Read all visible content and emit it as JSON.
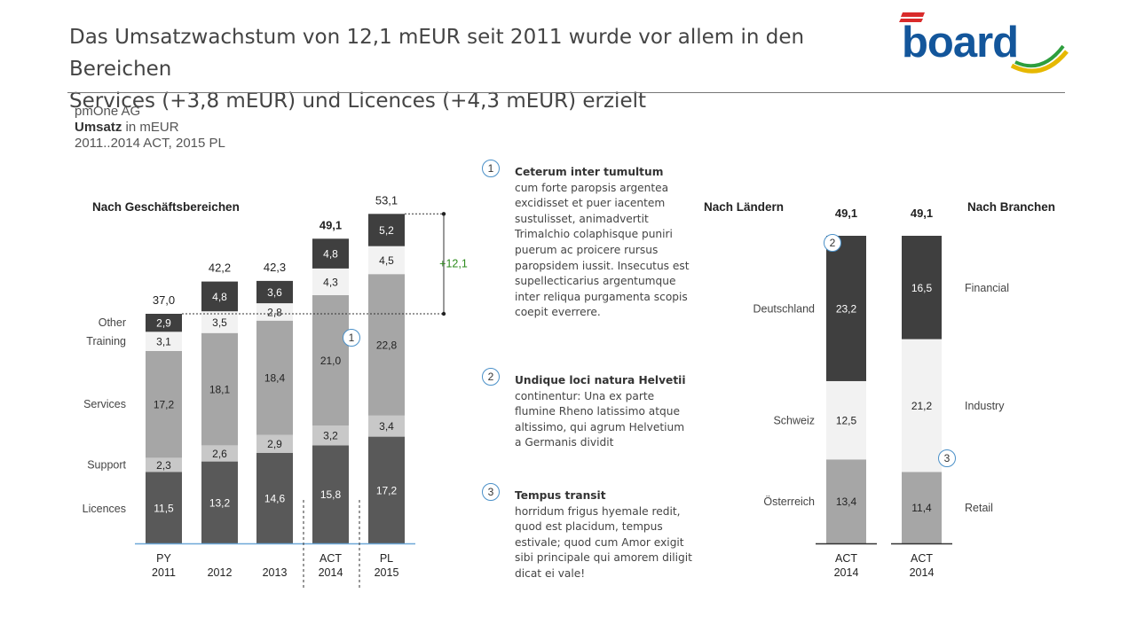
{
  "header": {
    "title_line1": "Das Umsatzwachstum von 12,1 mEUR seit 2011 wurde vor allem in den Bereichen",
    "title_line2": "Services  (+3,8 mEUR) und Licences (+4,3 mEUR) erzielt",
    "logo_text": "board"
  },
  "subtitle": {
    "company": "pmOne AG",
    "measure": "Umsatz",
    "unit": " in mEUR",
    "period": "2011..2014 ACT, 2015 PL"
  },
  "sections": {
    "business": "Nach Geschäftsbereichen",
    "countries": "Nach Ländern",
    "industries": "Nach Branchen"
  },
  "colors": {
    "licences": "#595959",
    "support": "#c8c8c8",
    "services": "#a6a6a6",
    "training": "#f2f2f2",
    "other": "#3f3f3f",
    "growth_green": "#2e8b1e",
    "badge_border": "#4a90c8"
  },
  "chart_data": [
    {
      "type": "bar",
      "stacked": true,
      "title": "Nach Geschäftsbereichen",
      "categories": [
        "PY\n2011",
        "2012",
        "2013",
        "ACT\n2014",
        "PL\n2015"
      ],
      "series": [
        {
          "name": "Licences",
          "values": [
            11.5,
            13.2,
            14.6,
            15.8,
            17.2
          ],
          "labels": [
            "11,5",
            "13,2",
            "14,6",
            "15,8",
            "17,2"
          ]
        },
        {
          "name": "Support",
          "values": [
            2.3,
            2.6,
            2.9,
            3.2,
            3.4
          ],
          "labels": [
            "2,3",
            "2,6",
            "2,9",
            "3,2",
            "3,4"
          ]
        },
        {
          "name": "Services",
          "values": [
            17.2,
            18.1,
            18.4,
            21.0,
            22.8
          ],
          "labels": [
            "17,2",
            "18,1",
            "18,4",
            "21,0",
            "22,8"
          ]
        },
        {
          "name": "Training",
          "values": [
            3.1,
            3.5,
            2.8,
            4.3,
            4.5
          ],
          "labels": [
            "3,1",
            "3,5",
            "2,8",
            "4,3",
            "4,5"
          ]
        },
        {
          "name": "Other",
          "values": [
            2.9,
            4.8,
            3.6,
            4.8,
            5.2
          ],
          "labels": [
            "2,9",
            "4,8",
            "3,6",
            "4,8",
            "5,2"
          ]
        }
      ],
      "totals": [
        37.0,
        42.2,
        42.3,
        49.1,
        53.1
      ],
      "total_labels": [
        "37,0",
        "42,2",
        "42,3",
        "49,1",
        "53,1"
      ],
      "growth_label": "+12,1"
    },
    {
      "type": "bar",
      "stacked": true,
      "title": "Nach Ländern",
      "categories": [
        "ACT\n2014"
      ],
      "series": [
        {
          "name": "Österreich",
          "values": [
            13.4
          ],
          "labels": [
            "13,4"
          ]
        },
        {
          "name": "Schweiz",
          "values": [
            12.5
          ],
          "labels": [
            "12,5"
          ]
        },
        {
          "name": "Deutschland",
          "values": [
            23.2
          ],
          "labels": [
            "23,2"
          ]
        }
      ],
      "totals": [
        49.1
      ],
      "total_labels": [
        "49,1"
      ]
    },
    {
      "type": "bar",
      "stacked": true,
      "title": "Nach Branchen",
      "categories": [
        "ACT\n2014"
      ],
      "series": [
        {
          "name": "Retail",
          "values": [
            11.4
          ],
          "labels": [
            "11,4"
          ]
        },
        {
          "name": "Industry",
          "values": [
            21.2
          ],
          "labels": [
            "21,2"
          ]
        },
        {
          "name": "Financial",
          "values": [
            16.5
          ],
          "labels": [
            "16,5"
          ]
        }
      ],
      "totals": [
        49.1
      ],
      "total_labels": [
        "49,1"
      ]
    }
  ],
  "badges": [
    "1",
    "2",
    "3"
  ],
  "notes": [
    {
      "title": "Ceterum inter tumultum",
      "body": "cum forte paropsis argentea excidisset et puer iacentem sustulisset, animadvertit Trimalchio colaphisque puniri puerum ac proicere rursus paropsidem iussit. Insecutus est supellecticarius argentumque inter reliqua purgamenta scopis coepit everrere."
    },
    {
      "title": "Undique loci natura Helvetii",
      "body": "continentur: Una ex parte flumine Rheno latissimo atque altissimo, qui agrum Helvetium a Germanis dividit"
    },
    {
      "title": "Tempus transit",
      "body": "horridum   frigus hyemale redit, quod est placidum,  tempus estivale; quod cum Amor exigit sibi principale qui amorem diligit  dicat ei vale!"
    }
  ]
}
